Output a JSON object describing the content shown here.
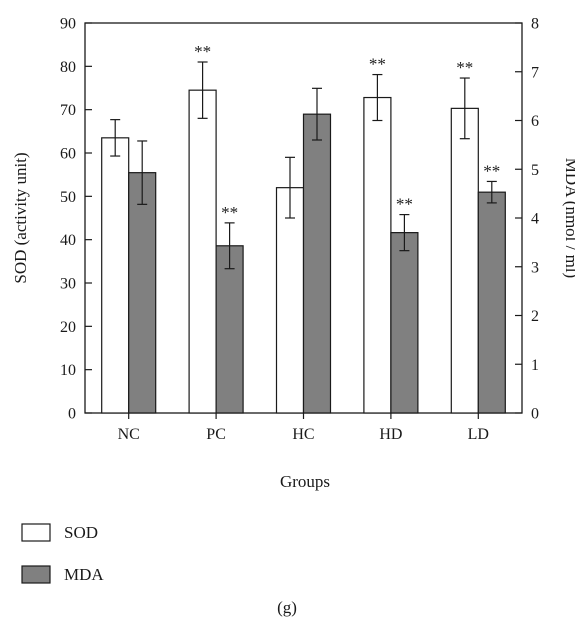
{
  "chart_data": {
    "type": "bar",
    "categories": [
      "NC",
      "PC",
      "HC",
      "HD",
      "LD"
    ],
    "xlabel": "Groups",
    "ylabel": "SOD (activity unit)",
    "y2label": "MDA (nmol / ml)",
    "ylim": [
      0,
      90
    ],
    "y2lim": [
      0,
      8
    ],
    "yticks": [
      0,
      10,
      20,
      30,
      40,
      50,
      60,
      70,
      80,
      90
    ],
    "y2ticks": [
      0,
      1,
      2,
      3,
      4,
      5,
      6,
      7,
      8
    ],
    "series": [
      {
        "name": "SOD",
        "axis": "left",
        "color": "#ffffff",
        "values": [
          63.5,
          74.5,
          52.0,
          72.8,
          70.3
        ],
        "errors": [
          4.2,
          6.5,
          7.0,
          5.3,
          7.0
        ],
        "significance": [
          "",
          "**",
          "",
          "**",
          "**"
        ]
      },
      {
        "name": "MDA",
        "axis": "right",
        "color": "#808080",
        "values": [
          4.93,
          3.43,
          6.13,
          3.7,
          4.53
        ],
        "errors": [
          0.65,
          0.47,
          0.53,
          0.37,
          0.22
        ],
        "significance": [
          "",
          "**",
          "",
          "**",
          "**"
        ]
      }
    ],
    "legend_position": "bottom-left",
    "grid": false
  },
  "panel_label": "(g)"
}
